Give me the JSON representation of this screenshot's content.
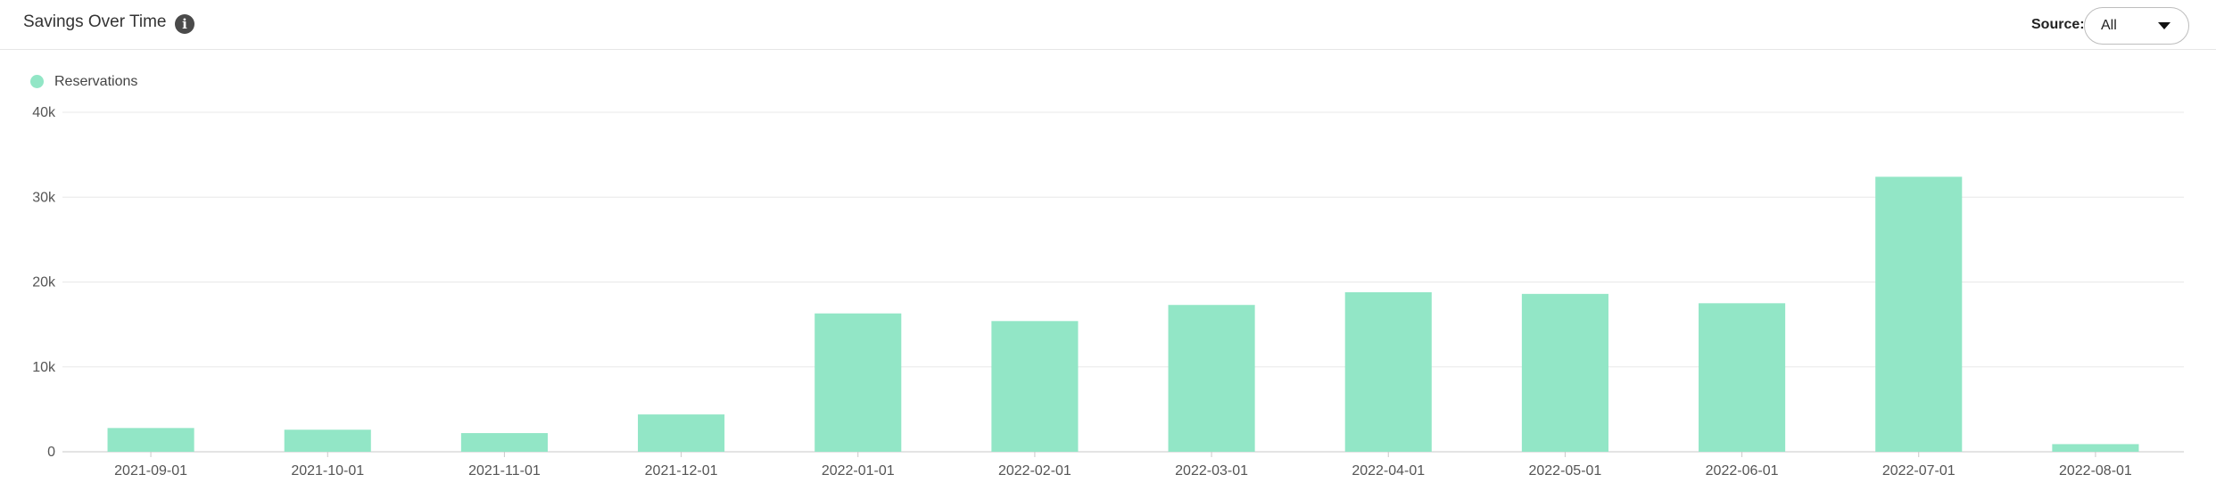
{
  "header": {
    "title": "Savings Over Time",
    "info_icon": "info-icon",
    "source_label": "Source:",
    "source_value": "All",
    "dropdown_icon": "chevron-down-icon"
  },
  "legend": {
    "label": "Reservations",
    "color": "#92e6c6"
  },
  "chart_data": {
    "type": "bar",
    "categories": [
      "2021-09-01",
      "2021-10-01",
      "2021-11-01",
      "2021-12-01",
      "2022-01-01",
      "2022-02-01",
      "2022-03-01",
      "2022-04-01",
      "2022-05-01",
      "2022-06-01",
      "2022-07-01",
      "2022-08-01"
    ],
    "series": [
      {
        "name": "Reservations",
        "color": "#92e6c6",
        "values": [
          2800,
          2600,
          2200,
          4400,
          16300,
          15400,
          17300,
          18800,
          18600,
          17500,
          32400,
          900
        ]
      }
    ],
    "ylim": [
      0,
      40000
    ],
    "yticks": [
      0,
      10000,
      20000,
      30000,
      40000
    ],
    "ytick_labels": [
      "0",
      "10k",
      "20k",
      "30k",
      "40k"
    ],
    "grid": true,
    "legend_position": "top-left"
  }
}
